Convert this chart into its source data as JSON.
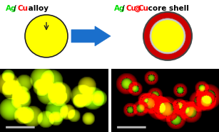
{
  "title_left_parts": [
    {
      "text": "Ag",
      "color": "#00dd00"
    },
    {
      "text": "/",
      "color": "#000000"
    },
    {
      "text": "Cu",
      "color": "#ff0000"
    },
    {
      "text": " alloy",
      "color": "#000000"
    }
  ],
  "title_right_parts": [
    {
      "text": "Ag",
      "color": "#00dd00"
    },
    {
      "text": "/",
      "color": "#000000"
    },
    {
      "text": "Cu",
      "color": "#ff0000"
    },
    {
      "text": "@",
      "color": "#ff0000"
    },
    {
      "text": "Cu",
      "color": "#ff0000"
    },
    {
      "text": " core shell",
      "color": "#000000"
    }
  ],
  "background_color": "#ffffff",
  "alloy_circle_color": "#ffff00",
  "alloy_circle_edge": "#222222",
  "shell_outer_color": "#cc0000",
  "shell_inner_color": "#ffff00",
  "shell_outer_edge": "#444444",
  "arrow_color": "#1a6fcc",
  "font_size": 7.5
}
